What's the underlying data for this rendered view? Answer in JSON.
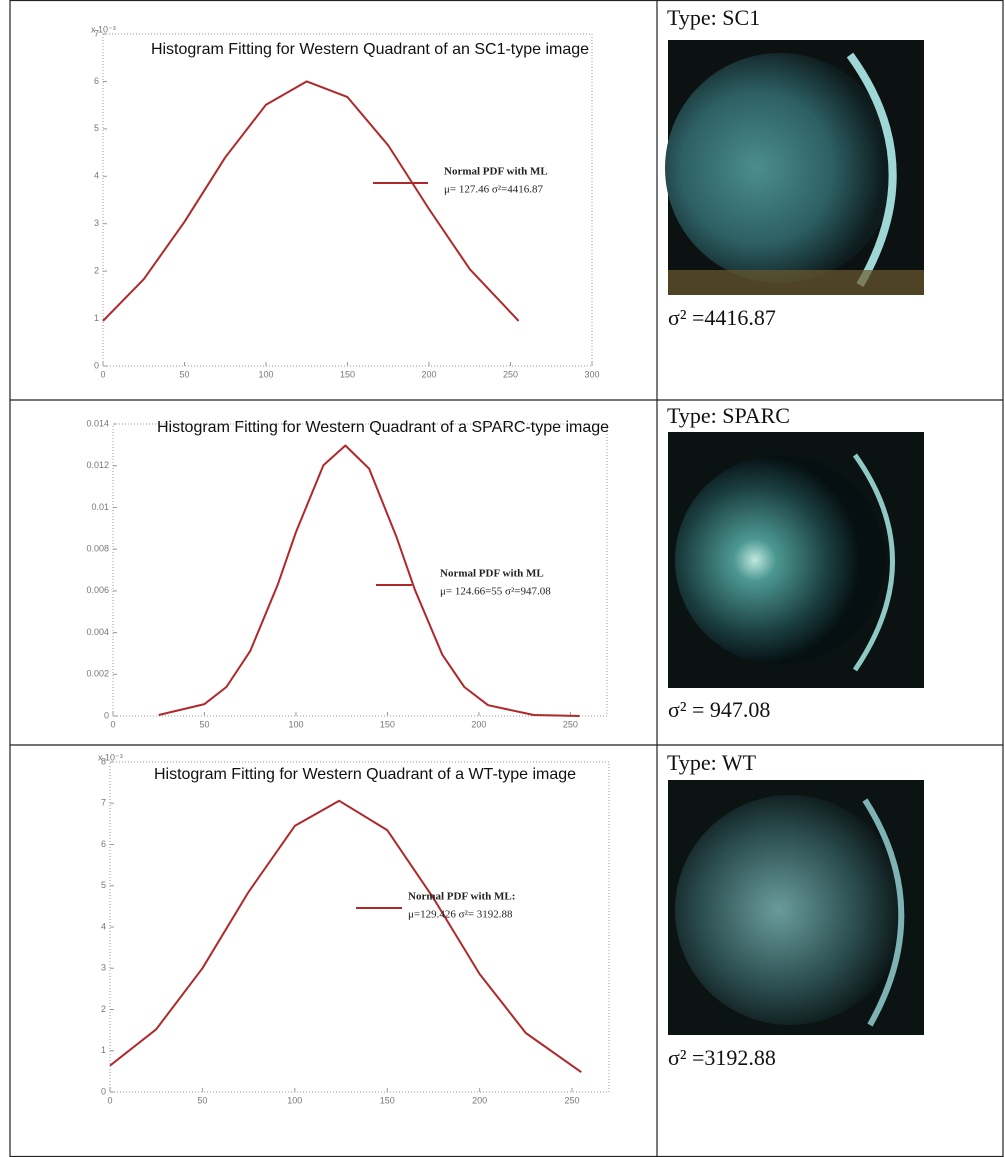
{
  "chart_data": [
    {
      "type": "line",
      "title": "Histogram Fitting for Western Quadrant of an SC1-type image",
      "y_multiplier": "x 10⁻³",
      "x": [
        0,
        25,
        50,
        75,
        100,
        125,
        150,
        175,
        200,
        225,
        255
      ],
      "series": [
        {
          "name": "Normal PDF with ML",
          "color": "#b0282a",
          "values": [
            0.95,
            1.83,
            3.04,
            4.4,
            5.51,
            6.0,
            5.67,
            4.65,
            3.31,
            2.04,
            0.95
          ]
        }
      ],
      "legend_note": "μ= 127.46 σ²=4416.87",
      "xlim": [
        0,
        300
      ],
      "xticks": [
        0,
        50,
        100,
        150,
        200,
        250,
        300
      ],
      "ylim": [
        0,
        7
      ],
      "yticks": [
        0,
        1,
        2,
        3,
        4,
        5,
        6,
        7
      ],
      "grid": false
    },
    {
      "type": "line",
      "title": "Histogram Fitting for Western Quadrant of a SPARC-type image",
      "x": [
        25,
        50,
        62,
        75,
        90,
        100,
        115,
        127,
        140,
        155,
        165,
        180,
        192,
        205,
        230,
        255
      ],
      "series": [
        {
          "name": "Normal PDF with ML",
          "color": "#b0282a",
          "values": [
            5e-05,
            0.00057,
            0.00139,
            0.00311,
            0.00629,
            0.00882,
            0.01202,
            0.01297,
            0.01186,
            0.00857,
            0.00605,
            0.00294,
            0.00139,
            0.00052,
            5e-05,
            0
          ]
        }
      ],
      "legend_note": "μ= 124.66=55  σ²=947.08",
      "xlim": [
        0,
        270
      ],
      "xticks": [
        0,
        50,
        100,
        150,
        200,
        250
      ],
      "ylim": [
        0,
        0.014
      ],
      "yticks": [
        0,
        0.002,
        0.004,
        0.006,
        0.008,
        0.01,
        0.012,
        0.014
      ],
      "grid": false
    },
    {
      "type": "line",
      "title": "Histogram Fitting for Western Quadrant of a WT-type image",
      "y_multiplier": "x 10⁻³",
      "x": [
        0,
        25,
        50,
        75,
        100,
        124,
        150,
        175,
        200,
        225,
        255
      ],
      "series": [
        {
          "name": "Normal PDF with ML:",
          "color": "#b0282a",
          "values": [
            0.64,
            1.52,
            3.0,
            4.85,
            6.45,
            7.06,
            6.35,
            4.7,
            2.86,
            1.43,
            0.48
          ]
        }
      ],
      "legend_note": "μ=129.426   σ²= 3192.88",
      "xlim": [
        0,
        270
      ],
      "xticks": [
        0,
        50,
        100,
        150,
        200,
        250
      ],
      "ylim": [
        0,
        8
      ],
      "yticks": [
        0,
        1,
        2,
        3,
        4,
        5,
        6,
        7,
        8
      ],
      "grid": false
    }
  ],
  "panels": [
    {
      "type_label": "Type: SC1",
      "variance": "σ² =4416.87"
    },
    {
      "type_label": "Type: SPARC",
      "variance": "σ² = 947.08"
    },
    {
      "type_label": "Type: WT",
      "variance": "σ² =3192.88"
    }
  ]
}
